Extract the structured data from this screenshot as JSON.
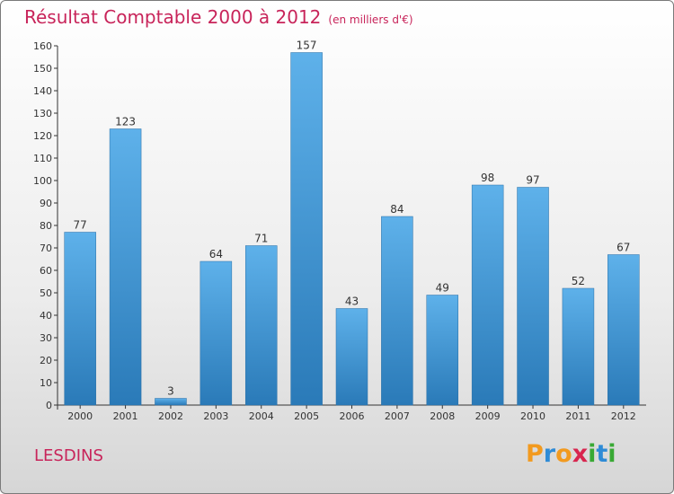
{
  "header": {
    "title": "Résultat Comptable 2000 à 2012",
    "unit": "(en milliers d'€)"
  },
  "footer": {
    "commune": "LESDINS",
    "logo": [
      "P",
      "r",
      "o",
      "x",
      "i",
      "t",
      "i"
    ]
  },
  "colors": {
    "accent": "#c8245a",
    "bar_top": "#5eb1ea",
    "bar_bottom": "#2a7ab8"
  },
  "chart_data": {
    "type": "bar",
    "title": "Résultat Comptable 2000 à 2012",
    "xlabel": "",
    "ylabel": "",
    "categories": [
      "2000",
      "2001",
      "2002",
      "2003",
      "2004",
      "2005",
      "2006",
      "2007",
      "2008",
      "2009",
      "2010",
      "2011",
      "2012"
    ],
    "values": [
      77,
      123,
      3,
      64,
      71,
      157,
      43,
      84,
      49,
      98,
      97,
      52,
      67
    ],
    "ylim": [
      0,
      160
    ],
    "yticks": [
      0,
      10,
      20,
      30,
      40,
      50,
      60,
      70,
      80,
      90,
      100,
      110,
      120,
      130,
      140,
      150,
      160
    ],
    "grid": false
  }
}
